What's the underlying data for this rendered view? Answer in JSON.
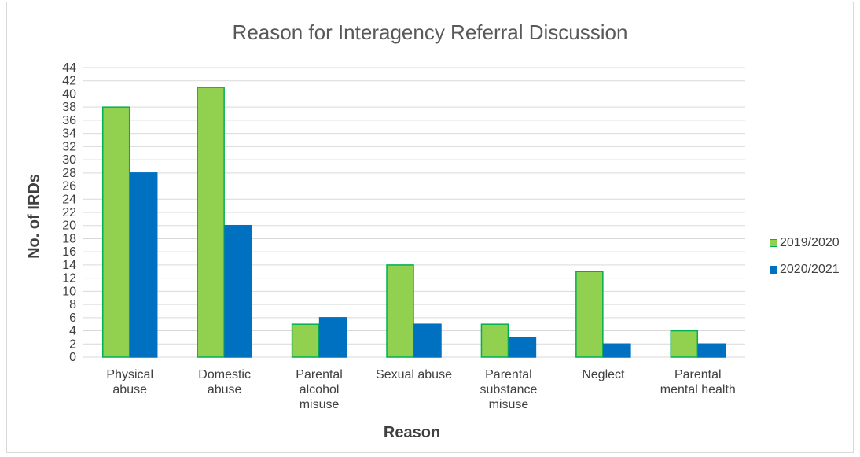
{
  "chart_data": {
    "type": "bar",
    "title": "Reason for Interagency Referral Discussion",
    "xlabel": "Reason",
    "ylabel": "No. of IRDs",
    "categories": [
      [
        "Physical",
        "abuse"
      ],
      [
        "Domestic",
        "abuse"
      ],
      [
        "Parental",
        "alcohol",
        "misuse"
      ],
      [
        "Sexual abuse"
      ],
      [
        "Parental",
        "substance",
        "misuse"
      ],
      [
        "Neglect"
      ],
      [
        "Parental",
        "mental health"
      ]
    ],
    "series": [
      {
        "name": "2019/2020",
        "values": [
          38,
          41,
          5,
          14,
          5,
          13,
          4
        ],
        "fill": "#92d050",
        "stroke": "#00b050"
      },
      {
        "name": "2020/2021",
        "values": [
          28,
          20,
          6,
          5,
          3,
          2,
          2
        ],
        "fill": "#0070c0",
        "stroke": "#0070c0"
      }
    ],
    "ylim": [
      0,
      44
    ],
    "ytick_step": 2,
    "grid": true,
    "legend_position": "right"
  }
}
